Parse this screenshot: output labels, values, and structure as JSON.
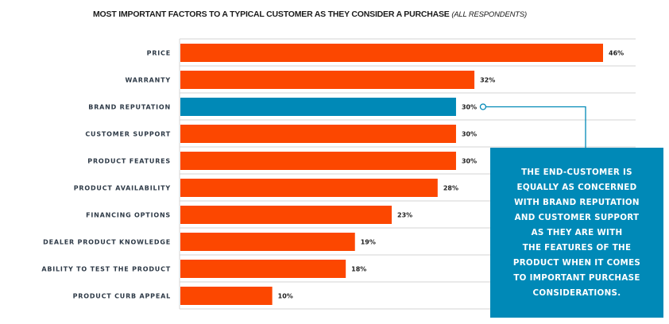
{
  "colors": {
    "bar": "#fc4700",
    "highlight": "#0089b7",
    "grid": "#dcdcdc",
    "callout_bg": "#0089b7"
  },
  "chart_data": {
    "type": "bar",
    "orientation": "horizontal",
    "title": "MOST IMPORTANT FACTORS TO A TYPICAL CUSTOMER AS THEY CONSIDER A PURCHASE",
    "subtitle": "(ALL RESPONDENTS)",
    "categories": [
      "PRICE",
      "WARRANTY",
      "BRAND REPUTATION",
      "CUSTOMER SUPPORT",
      "PRODUCT FEATURES",
      "PRODUCT AVAILABILITY",
      "FINANCING OPTIONS",
      "DEALER PRODUCT KNOWLEDGE",
      "ABILITY TO TEST THE PRODUCT",
      "PRODUCT CURB APPEAL"
    ],
    "values": [
      46,
      32,
      30,
      30,
      30,
      28,
      23,
      19,
      18,
      10
    ],
    "value_labels": [
      "46%",
      "32%",
      "30%",
      "30%",
      "30%",
      "28%",
      "23%",
      "19%",
      "18%",
      "10%"
    ],
    "highlighted_category": "BRAND REPUTATION",
    "unit": "%",
    "xlim": [
      0,
      46
    ],
    "grid": true,
    "legend": "none"
  },
  "callout": {
    "text": "THE END-CUSTOMER IS EQUALLY AS CONCERNED WITH BRAND REPUTATION AND CUSTOMER SUPPORT AS THEY ARE WITH THE FEATURES OF THE PRODUCT WHEN IT COMES TO IMPORTANT PURCHASE CONSIDERATIONS.",
    "lines": [
      "THE END-CUSTOMER IS",
      "EQUALLY AS CONCERNED",
      "WITH BRAND REPUTATION",
      "AND CUSTOMER SUPPORT",
      "AS THEY ARE WITH",
      "THE FEATURES OF THE",
      "PRODUCT WHEN IT COMES",
      "TO IMPORTANT PURCHASE",
      "CONSIDERATIONS."
    ]
  }
}
